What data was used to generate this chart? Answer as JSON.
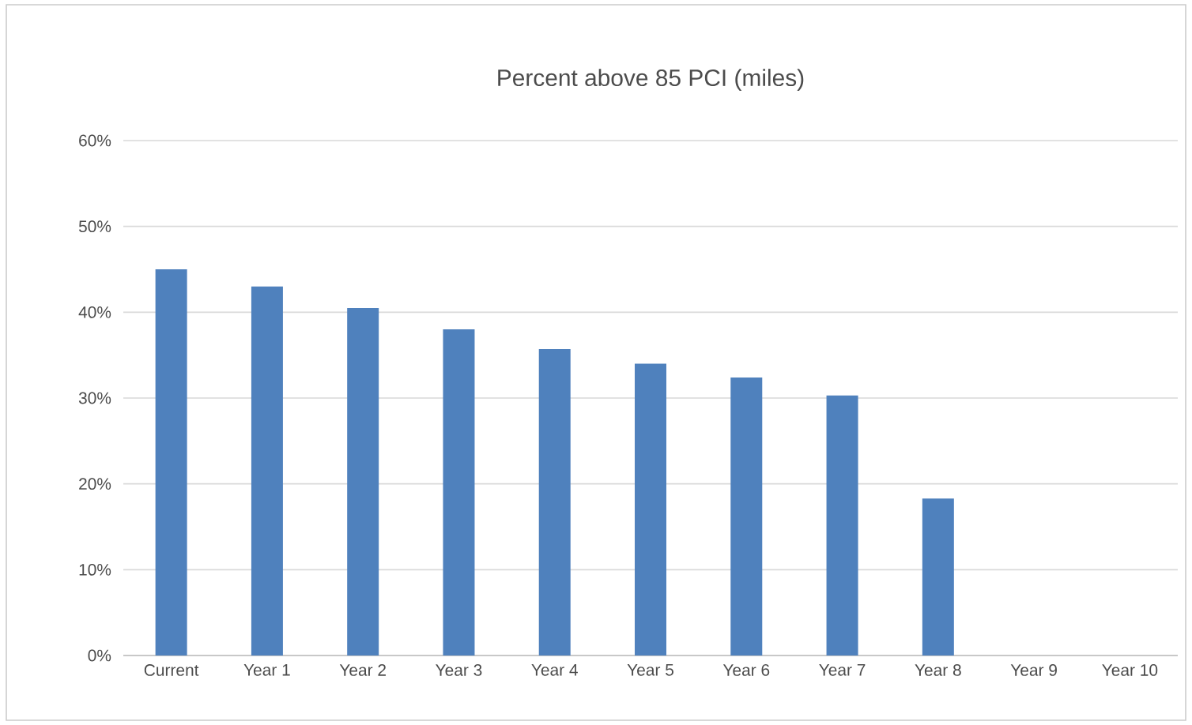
{
  "chart_data": {
    "type": "bar",
    "title": "Percent above 85 PCI (miles)",
    "categories": [
      "Current",
      "Year 1",
      "Year 2",
      "Year 3",
      "Year 4",
      "Year 5",
      "Year 6",
      "Year 7",
      "Year 8",
      "Year 9",
      "Year 10"
    ],
    "values": [
      45,
      43,
      40.5,
      38,
      35.7,
      34,
      32.4,
      30.3,
      18.3,
      0,
      0
    ],
    "color": "#4f81bd",
    "ylim": [
      0,
      60
    ],
    "yticks": [
      {
        "value": 0,
        "label": "0%"
      },
      {
        "value": 10,
        "label": "10%"
      },
      {
        "value": 20,
        "label": "20%"
      },
      {
        "value": 30,
        "label": "30%"
      },
      {
        "value": 40,
        "label": "40%"
      },
      {
        "value": 50,
        "label": "50%"
      },
      {
        "value": 60,
        "label": "60%"
      }
    ],
    "grid": "y"
  }
}
